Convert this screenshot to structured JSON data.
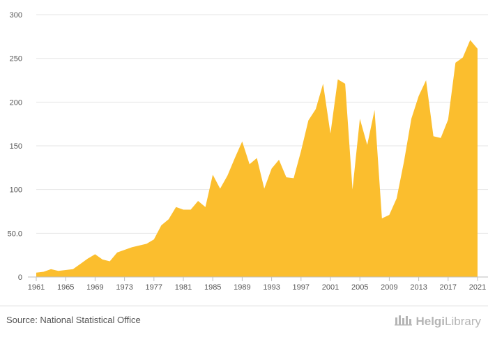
{
  "chart_data": {
    "type": "area",
    "color": "#FBBE2E",
    "x": [
      1961,
      1962,
      1963,
      1964,
      1965,
      1966,
      1967,
      1968,
      1969,
      1970,
      1971,
      1972,
      1973,
      1974,
      1975,
      1976,
      1977,
      1978,
      1979,
      1980,
      1981,
      1982,
      1983,
      1984,
      1985,
      1986,
      1987,
      1988,
      1989,
      1990,
      1991,
      1992,
      1993,
      1994,
      1995,
      1996,
      1997,
      1998,
      1999,
      2000,
      2001,
      2002,
      2003,
      2004,
      2005,
      2006,
      2007,
      2008,
      2009,
      2010,
      2011,
      2012,
      2013,
      2014,
      2015,
      2016,
      2017,
      2018,
      2019,
      2020,
      2021
    ],
    "values": [
      5,
      6,
      9,
      7,
      8,
      9,
      15,
      21,
      26,
      20,
      18,
      28,
      31,
      34,
      36,
      38,
      43,
      59,
      66,
      80,
      77,
      77,
      87,
      80,
      117,
      101,
      116,
      136,
      155,
      129,
      136,
      101,
      124,
      134,
      114,
      113,
      144,
      179,
      192,
      221,
      164,
      226,
      221,
      100,
      181,
      151,
      191,
      67,
      71,
      90,
      132,
      181,
      207,
      225,
      161,
      159,
      180,
      245,
      251,
      271,
      261
    ],
    "xlabel": "",
    "ylabel": "",
    "ylim": [
      0,
      300
    ],
    "xlim": [
      1961,
      2021
    ],
    "y_ticks": [
      0,
      50,
      100,
      150,
      200,
      250,
      300
    ],
    "y_tick_labels": [
      "0",
      "50.0",
      "100",
      "150",
      "200",
      "250",
      "300"
    ],
    "x_ticks": [
      1961,
      1965,
      1969,
      1973,
      1977,
      1981,
      1985,
      1989,
      1993,
      1997,
      2001,
      2005,
      2009,
      2013,
      2017,
      2021
    ],
    "x_tick_labels": [
      "1961",
      "1965",
      "1969",
      "1973",
      "1977",
      "1981",
      "1985",
      "1989",
      "1993",
      "1997",
      "2001",
      "2005",
      "2009",
      "2013",
      "2017",
      "2021"
    ],
    "grid": "horizontal",
    "legend": "none"
  },
  "footer": {
    "source": "Source: National Statistical Office",
    "brand_bold": "Helgi",
    "brand_rest": "Library",
    "logo_icon": "helgi-library-logo-icon"
  }
}
